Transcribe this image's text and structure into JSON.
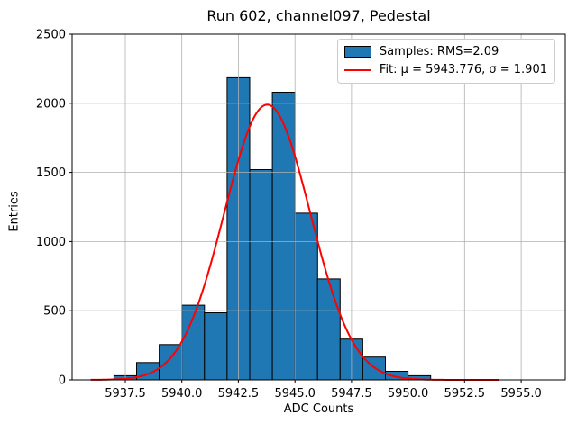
{
  "chart_data": {
    "type": "bar",
    "subtype": "histogram",
    "title": "Run 602, channel097, Pedestal",
    "xlabel": "ADC Counts",
    "ylabel": "Entries",
    "xlim": [
      5935.15,
      5956.95
    ],
    "ylim": [
      0,
      2500
    ],
    "x_ticks": [
      5937.5,
      5940.0,
      5942.5,
      5945.0,
      5947.5,
      5950.0,
      5952.5,
      5955.0
    ],
    "x_tick_labels": [
      "5937.5",
      "5940.0",
      "5942.5",
      "5945.0",
      "5947.5",
      "5950.0",
      "5952.5",
      "5955.0"
    ],
    "y_ticks": [
      0,
      500,
      1000,
      1500,
      2000,
      2500
    ],
    "y_tick_labels": [
      "0",
      "500",
      "1000",
      "1500",
      "2000",
      "2500"
    ],
    "grid": true,
    "legend_position": "upper right",
    "bins": {
      "edges": [
        5937,
        5938,
        5939,
        5940,
        5941,
        5942,
        5943,
        5944,
        5945,
        5946,
        5947,
        5948,
        5949,
        5950,
        5951
      ],
      "counts": [
        30,
        125,
        255,
        540,
        485,
        2185,
        1520,
        2080,
        1205,
        730,
        295,
        165,
        62,
        30
      ]
    },
    "fit": {
      "type": "gaussian",
      "mu": 5943.776,
      "sigma": 1.901,
      "amplitude": 1990,
      "x_start": 5936.0,
      "x_end": 5954.0
    },
    "colors": {
      "bar_fill": "#1f77b4",
      "bar_edge": "#000000",
      "fit_line": "#ff0000",
      "grid": "#b0b0b0",
      "spine": "#000000",
      "text": "#000000",
      "background": "#ffffff",
      "legend_border": "#cccccc"
    },
    "legend": {
      "items": [
        {
          "swatch": "patch",
          "label": "Samples: RMS=2.09"
        },
        {
          "swatch": "line",
          "label": "Fit: μ = 5943.776, σ = 1.901"
        }
      ]
    }
  }
}
